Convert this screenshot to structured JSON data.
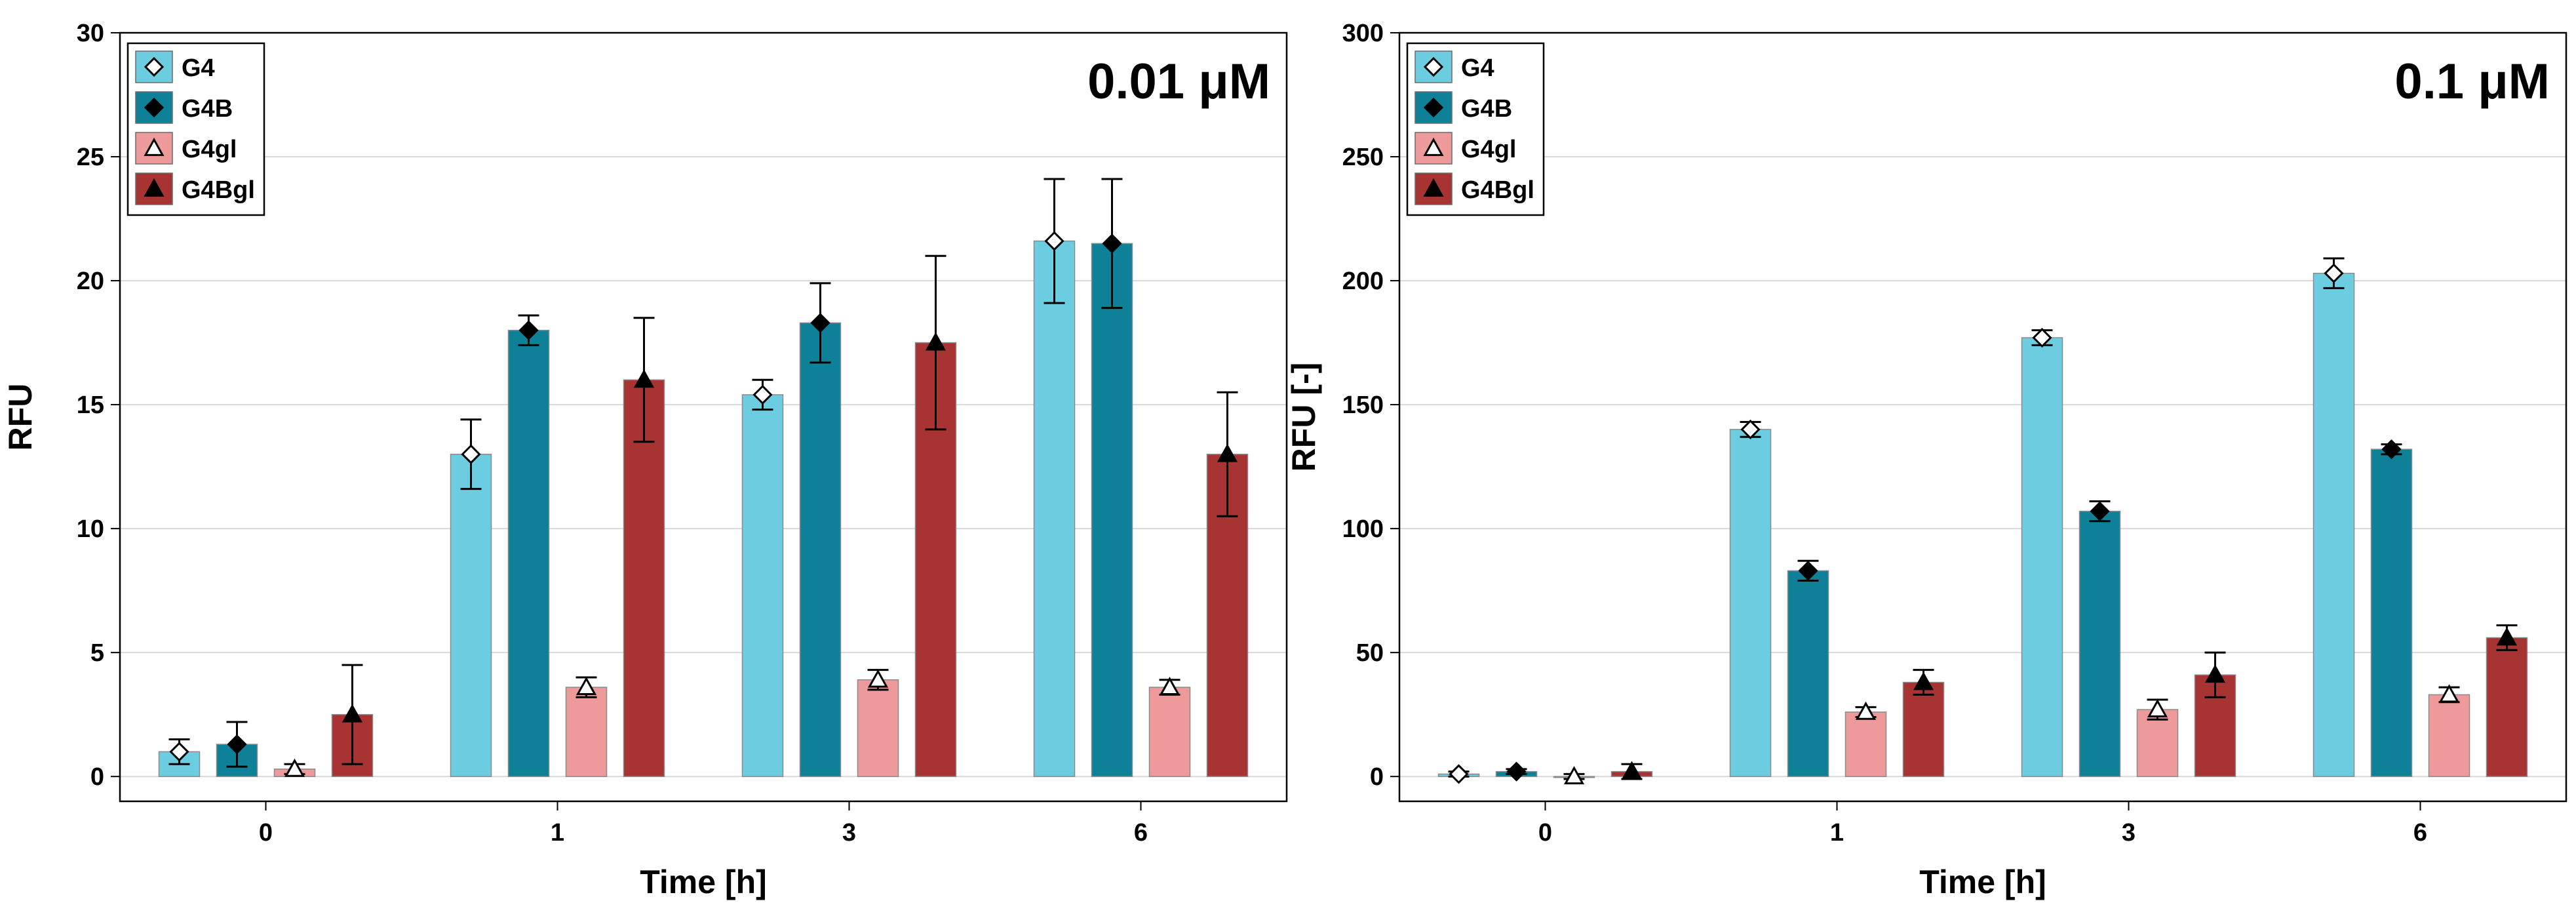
{
  "chart_data": [
    {
      "type": "bar",
      "annotation": "0.01 μM",
      "xlabel": "Time [h]",
      "ylabel": "RFU",
      "ylim": [
        -1,
        30
      ],
      "yticks": [
        0,
        5,
        10,
        15,
        20,
        25,
        30
      ],
      "grid": true,
      "legend_position": "top-left",
      "categories": [
        "0",
        "1",
        "3",
        "6"
      ],
      "series": [
        {
          "name": "G4",
          "color": "#6dcde0",
          "marker": "diamond-open",
          "values": [
            1.0,
            13.0,
            15.4,
            21.6
          ],
          "errors": [
            0.5,
            1.4,
            0.6,
            2.5
          ]
        },
        {
          "name": "G4B",
          "color": "#0e8198",
          "marker": "diamond-filled",
          "values": [
            1.3,
            18.0,
            18.3,
            21.5
          ],
          "errors": [
            0.9,
            0.6,
            1.6,
            2.6
          ]
        },
        {
          "name": "G4gl",
          "color": "#ef9a9a",
          "marker": "triangle-open",
          "values": [
            0.3,
            3.6,
            3.9,
            3.6
          ],
          "errors": [
            0.2,
            0.4,
            0.4,
            0.3
          ]
        },
        {
          "name": "G4Bgl",
          "color": "#a83333",
          "marker": "triangle-filled",
          "values": [
            2.5,
            16.0,
            17.5,
            13.0
          ],
          "errors": [
            2.0,
            2.5,
            3.5,
            2.5
          ]
        }
      ]
    },
    {
      "type": "bar",
      "annotation": "0.1 μM",
      "xlabel": "Time [h]",
      "ylabel": "RFU [-]",
      "ylim": [
        -10,
        300
      ],
      "yticks": [
        0,
        50,
        100,
        150,
        200,
        250,
        300
      ],
      "grid": true,
      "legend_position": "top-left",
      "categories": [
        "0",
        "1",
        "3",
        "6"
      ],
      "series": [
        {
          "name": "G4",
          "color": "#6dcde0",
          "marker": "diamond-open",
          "values": [
            1.0,
            140.0,
            177.0,
            203.0
          ],
          "errors": [
            1.0,
            3.0,
            3.0,
            6.0
          ]
        },
        {
          "name": "G4B",
          "color": "#0e8198",
          "marker": "diamond-filled",
          "values": [
            2.0,
            83.0,
            107.0,
            132.0
          ],
          "errors": [
            1.0,
            4.0,
            4.0,
            2.0
          ]
        },
        {
          "name": "G4gl",
          "color": "#ef9a9a",
          "marker": "triangle-open",
          "values": [
            0.0,
            26.0,
            27.0,
            33.0
          ],
          "errors": [
            1.0,
            2.0,
            4.0,
            3.0
          ]
        },
        {
          "name": "G4Bgl",
          "color": "#a83333",
          "marker": "triangle-filled",
          "values": [
            2.0,
            38.0,
            41.0,
            56.0
          ],
          "errors": [
            3.0,
            5.0,
            9.0,
            5.0
          ]
        }
      ]
    }
  ]
}
